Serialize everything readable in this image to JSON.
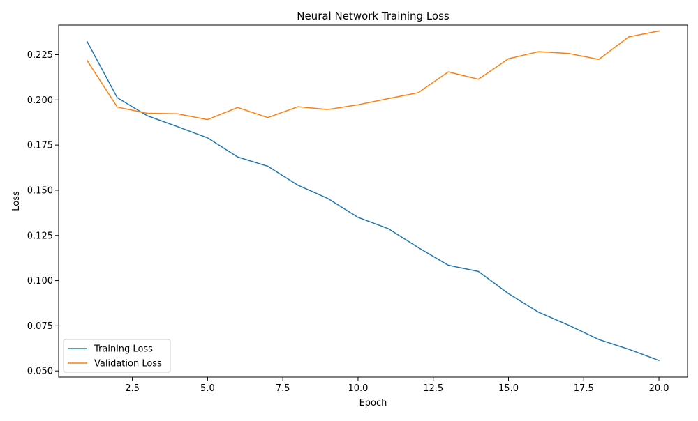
{
  "chart_data": {
    "type": "line",
    "title": "Neural Network Training Loss",
    "xlabel": "Epoch",
    "ylabel": "Loss",
    "xlim": [
      0.05,
      20.95
    ],
    "ylim": [
      0.0466,
      0.2414
    ],
    "xticks": [
      2.5,
      5.0,
      7.5,
      10.0,
      12.5,
      15.0,
      17.5,
      20.0
    ],
    "xtick_labels": [
      "2.5",
      "5.0",
      "7.5",
      "10.0",
      "12.5",
      "15.0",
      "17.5",
      "20.0"
    ],
    "yticks": [
      0.05,
      0.075,
      0.1,
      0.125,
      0.15,
      0.175,
      0.2,
      0.225
    ],
    "ytick_labels": [
      "0.050",
      "0.075",
      "0.100",
      "0.125",
      "0.150",
      "0.175",
      "0.200",
      "0.225"
    ],
    "grid": false,
    "legend_position": "lower-left",
    "x": [
      1,
      2,
      3,
      4,
      5,
      6,
      7,
      8,
      9,
      10,
      11,
      12,
      13,
      14,
      15,
      16,
      17,
      18,
      19,
      20
    ],
    "series": [
      {
        "name": "Training Loss",
        "color": "#1f77b4",
        "values": [
          0.2322,
          0.2012,
          0.1912,
          0.1852,
          0.179,
          0.1684,
          0.1633,
          0.1528,
          0.1454,
          0.135,
          0.1288,
          0.1183,
          0.1085,
          0.1051,
          0.0928,
          0.0825,
          0.0753,
          0.0674,
          0.062,
          0.0558
        ]
      },
      {
        "name": "Validation Loss",
        "color": "#ff7f0e",
        "values": [
          0.2217,
          0.196,
          0.1926,
          0.1923,
          0.1891,
          0.1958,
          0.1902,
          0.1962,
          0.1947,
          0.1973,
          0.2007,
          0.204,
          0.2155,
          0.2114,
          0.2228,
          0.2267,
          0.2257,
          0.2224,
          0.2349,
          0.2381
        ]
      }
    ]
  }
}
